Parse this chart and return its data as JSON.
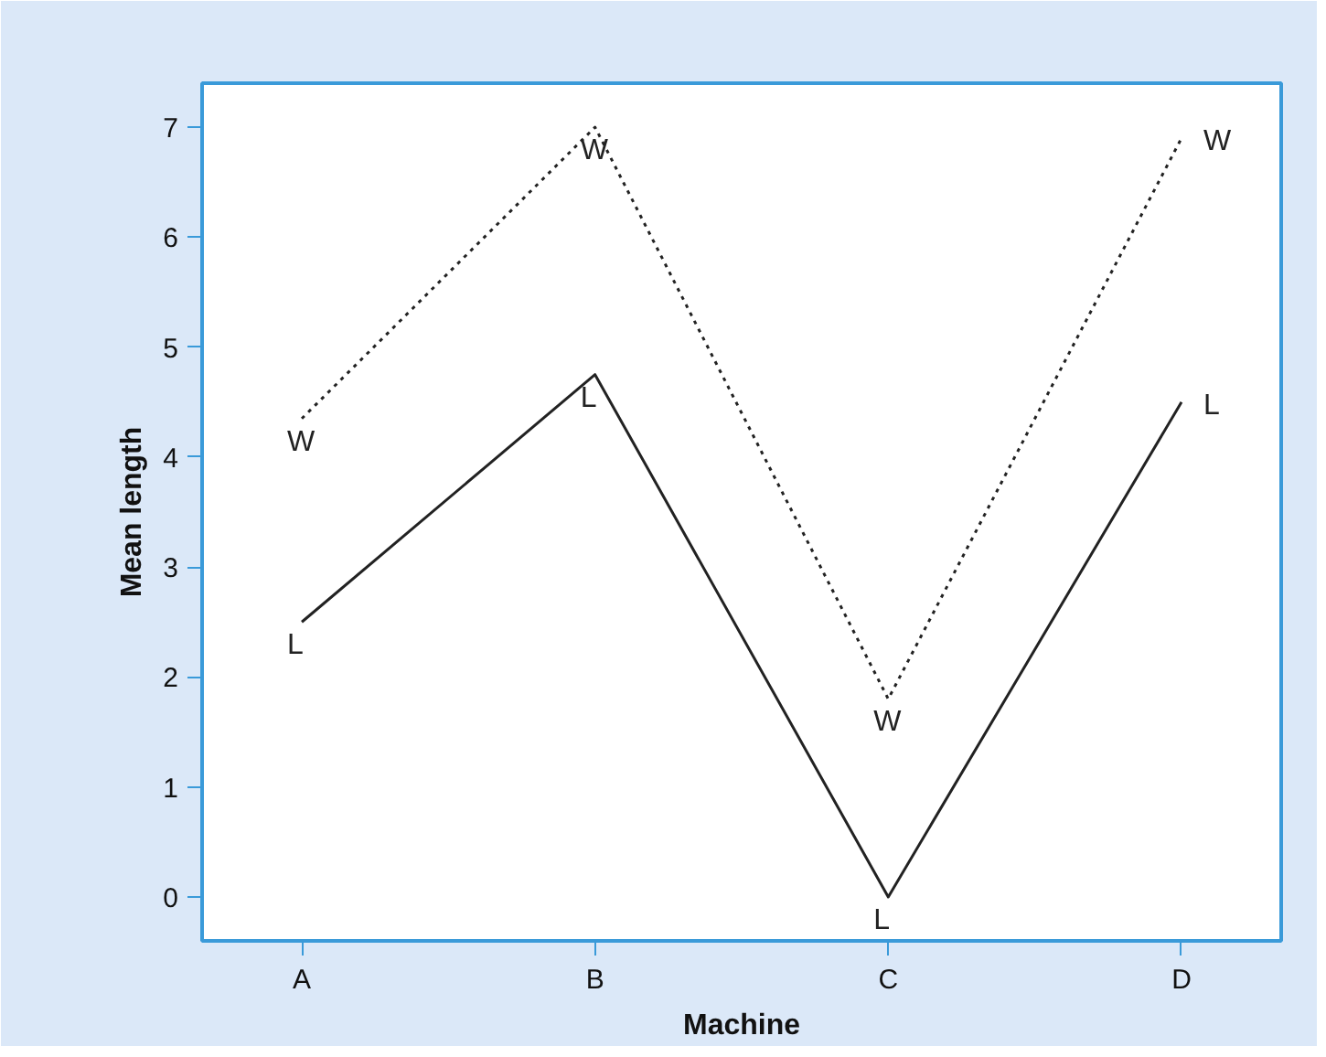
{
  "chart_data": {
    "type": "line",
    "xlabel": "Machine",
    "ylabel": "Mean length",
    "categories": [
      "A",
      "B",
      "C",
      "D"
    ],
    "series": [
      {
        "name": "W",
        "color": "#222222",
        "line_style": "dotted",
        "values": [
          4.35,
          7.0,
          1.8,
          6.9
        ]
      },
      {
        "name": "L",
        "color": "#222222",
        "line_style": "solid",
        "values": [
          2.5,
          4.75,
          0.0,
          4.5
        ]
      }
    ],
    "ylim": [
      -0.4,
      7.4
    ],
    "yticks": [
      0,
      1,
      2,
      3,
      4,
      5,
      6,
      7
    ],
    "grid": false,
    "legend": false,
    "marker": "none"
  }
}
